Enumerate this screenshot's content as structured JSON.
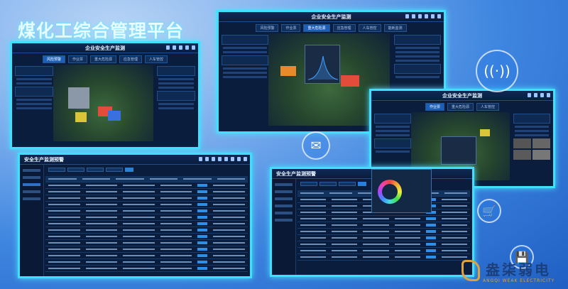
{
  "headline": "煤化工综合管理平台",
  "dashboard": {
    "title": "企业安全生产监测",
    "tabs": [
      "风险预警",
      "作业票",
      "重大危险源",
      "应急管理",
      "人车管控",
      "能耗监测"
    ]
  },
  "table_app": {
    "title": "安全生产监测预警"
  },
  "logo": {
    "name": "盎柒弱电",
    "tagline": "ANGQI WEAK ELECTRICITY"
  },
  "colors": {
    "frame": "#3fe0ff",
    "panel": "#0b1d3d",
    "accent": "#1b5fb8",
    "logo_gold": "#e0a33a"
  },
  "icons": [
    "wifi-icon",
    "mail-icon",
    "cart-icon",
    "save-icon"
  ]
}
